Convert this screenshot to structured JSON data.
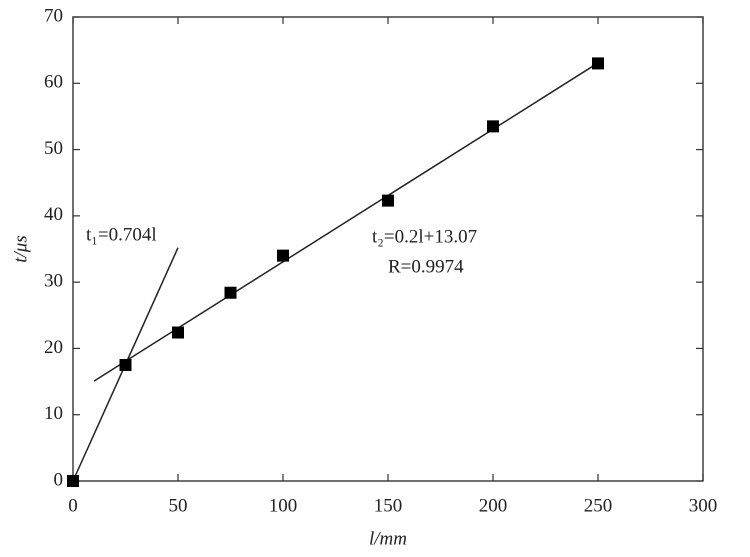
{
  "chart_data": {
    "type": "scatter",
    "xlabel": "l/mm",
    "ylabel": "t/μs",
    "xlim": [
      0,
      300
    ],
    "ylim": [
      0,
      70
    ],
    "xticks": [
      0,
      50,
      100,
      150,
      200,
      250,
      300
    ],
    "yticks": [
      0,
      10,
      20,
      30,
      40,
      50,
      60,
      70
    ],
    "series": [
      {
        "type": "scatter",
        "color": "#000000",
        "x": [
          0,
          25,
          50,
          75,
          100,
          150,
          200,
          250
        ],
        "values": [
          0,
          17.5,
          22.4,
          28.4,
          34,
          42.3,
          53.5,
          63
        ]
      },
      {
        "type": "line",
        "color": "#222222",
        "x": [
          0,
          50
        ],
        "values": [
          0,
          35.2
        ]
      },
      {
        "type": "line",
        "color": "#222222",
        "x": [
          10,
          250
        ],
        "values": [
          15.07,
          63.07
        ]
      }
    ],
    "annotations": [
      "t₁=0.704l",
      "t₂=0.2l+13.07",
      "R=0.9974"
    ]
  }
}
